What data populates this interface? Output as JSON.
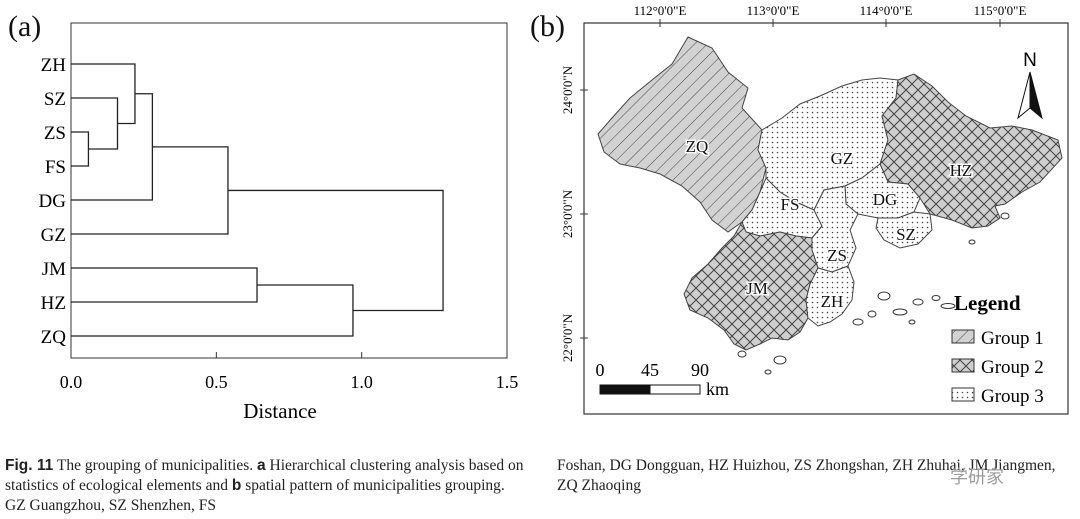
{
  "panel_a": {
    "label": "(a)",
    "chart_data": {
      "type": "dendrogram",
      "leaves": [
        "ZH",
        "SZ",
        "ZS",
        "FS",
        "DG",
        "GZ",
        "JM",
        "HZ",
        "ZQ"
      ],
      "merges": [
        {
          "a": "ZS",
          "b": "FS",
          "distance": 0.06
        },
        {
          "a": "SZ",
          "b": "ZS+FS",
          "distance": 0.16
        },
        {
          "a": "ZH",
          "b": "SZ+ZS+FS",
          "distance": 0.22
        },
        {
          "a": "ZH+SZ+ZS+FS",
          "b": "DG",
          "distance": 0.28
        },
        {
          "a": "ZH+SZ+ZS+FS+DG",
          "b": "GZ",
          "distance": 0.54
        },
        {
          "a": "JM",
          "b": "HZ",
          "distance": 0.64
        },
        {
          "a": "JM+HZ",
          "b": "ZQ",
          "distance": 0.97
        },
        {
          "a": "ZH+SZ+ZS+FS+DG+GZ",
          "b": "JM+HZ+ZQ",
          "distance": 1.28
        }
      ],
      "xlabel": "Distance",
      "xticks": [
        "0.0",
        "0.5",
        "1.0",
        "1.5"
      ],
      "xlim": [
        0,
        1.5
      ]
    }
  },
  "panel_b": {
    "label": "(b)",
    "lon_labels": [
      "112°0'0\"E",
      "113°0'0\"E",
      "114°0'0\"E",
      "115°0'0\"E"
    ],
    "lat_labels": [
      "24°0'0\"N",
      "23°0'0\"N",
      "22°0'0\"N"
    ],
    "north": "N",
    "regions": [
      {
        "name": "ZQ",
        "group": 1
      },
      {
        "name": "GZ",
        "group": 3
      },
      {
        "name": "HZ",
        "group": 2
      },
      {
        "name": "FS",
        "group": 3
      },
      {
        "name": "DG",
        "group": 3
      },
      {
        "name": "SZ",
        "group": 3
      },
      {
        "name": "ZS",
        "group": 3
      },
      {
        "name": "JM",
        "group": 2
      },
      {
        "name": "ZH",
        "group": 3
      }
    ],
    "legend": {
      "title": "Legend",
      "items": [
        {
          "label": "Group 1",
          "pattern": "hatch"
        },
        {
          "label": "Group 2",
          "pattern": "crosshatch"
        },
        {
          "label": "Group 3",
          "pattern": "dots"
        }
      ]
    },
    "scale": {
      "ticks": [
        "0",
        "45",
        "90"
      ],
      "unit": "km"
    }
  },
  "caption": {
    "fig": "Fig. 11",
    "part1": " The grouping of municipalities. ",
    "a": "a",
    "part2": " Hierarchical clustering analysis based on statistics of ecological elements and ",
    "b": "b",
    "part3": " spatial pattern of municipalities grouping. GZ Guangzhou, SZ Shenzhen, FS",
    "right": "Foshan, DG Dongguan, HZ Huizhou, ZS Zhongshan, ZH Zhuhai, JM Jiangmen, ZQ Zhaoqing"
  },
  "watermark": "学研家"
}
